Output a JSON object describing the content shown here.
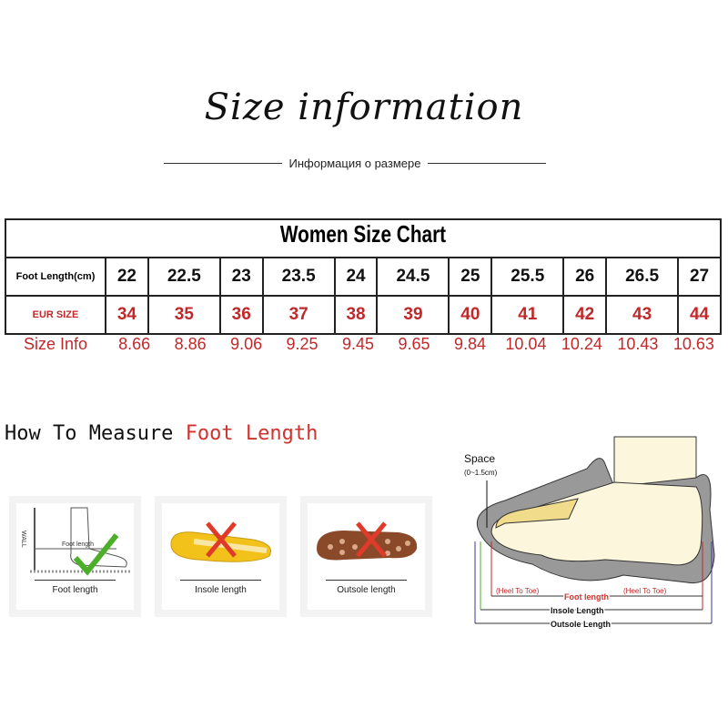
{
  "title": "Size information",
  "subtitle": "Информация о размере",
  "chart": {
    "title": "Women Size Chart",
    "foot_length_label": "Foot Length(cm)",
    "eur_label": "EUR SIZE",
    "info_label": "Size Info",
    "foot_length": [
      "22",
      "22.5",
      "23",
      "23.5",
      "24",
      "24.5",
      "25",
      "25.5",
      "26",
      "26.5",
      "27"
    ],
    "eur": [
      "34",
      "35",
      "36",
      "37",
      "38",
      "39",
      "40",
      "41",
      "42",
      "43",
      "44"
    ],
    "info": [
      "8.66",
      "8.86",
      "9.06",
      "9.25",
      "9.45",
      "9.65",
      "9.84",
      "10.04",
      "10.24",
      "10.43",
      "10.63"
    ]
  },
  "measure": {
    "prefix": "How To Measure",
    "highlight": "Foot Length"
  },
  "cards": [
    {
      "caption": "Foot length",
      "wall": "WALL",
      "inner": "Foot length",
      "mark": "check"
    },
    {
      "caption": "Insole length",
      "mark": "cross"
    },
    {
      "caption": "Outsole length",
      "mark": "cross"
    }
  ],
  "diagram": {
    "space": "Space",
    "space_range": "(0~1.5cm)",
    "heel_to_toe": "(Heel To Toe)",
    "foot_length": "Foot length",
    "insole": "Insole Length",
    "outsole": "Outsole Length"
  },
  "colors": {
    "red": "#c0282a",
    "green": "#4caf2a"
  }
}
